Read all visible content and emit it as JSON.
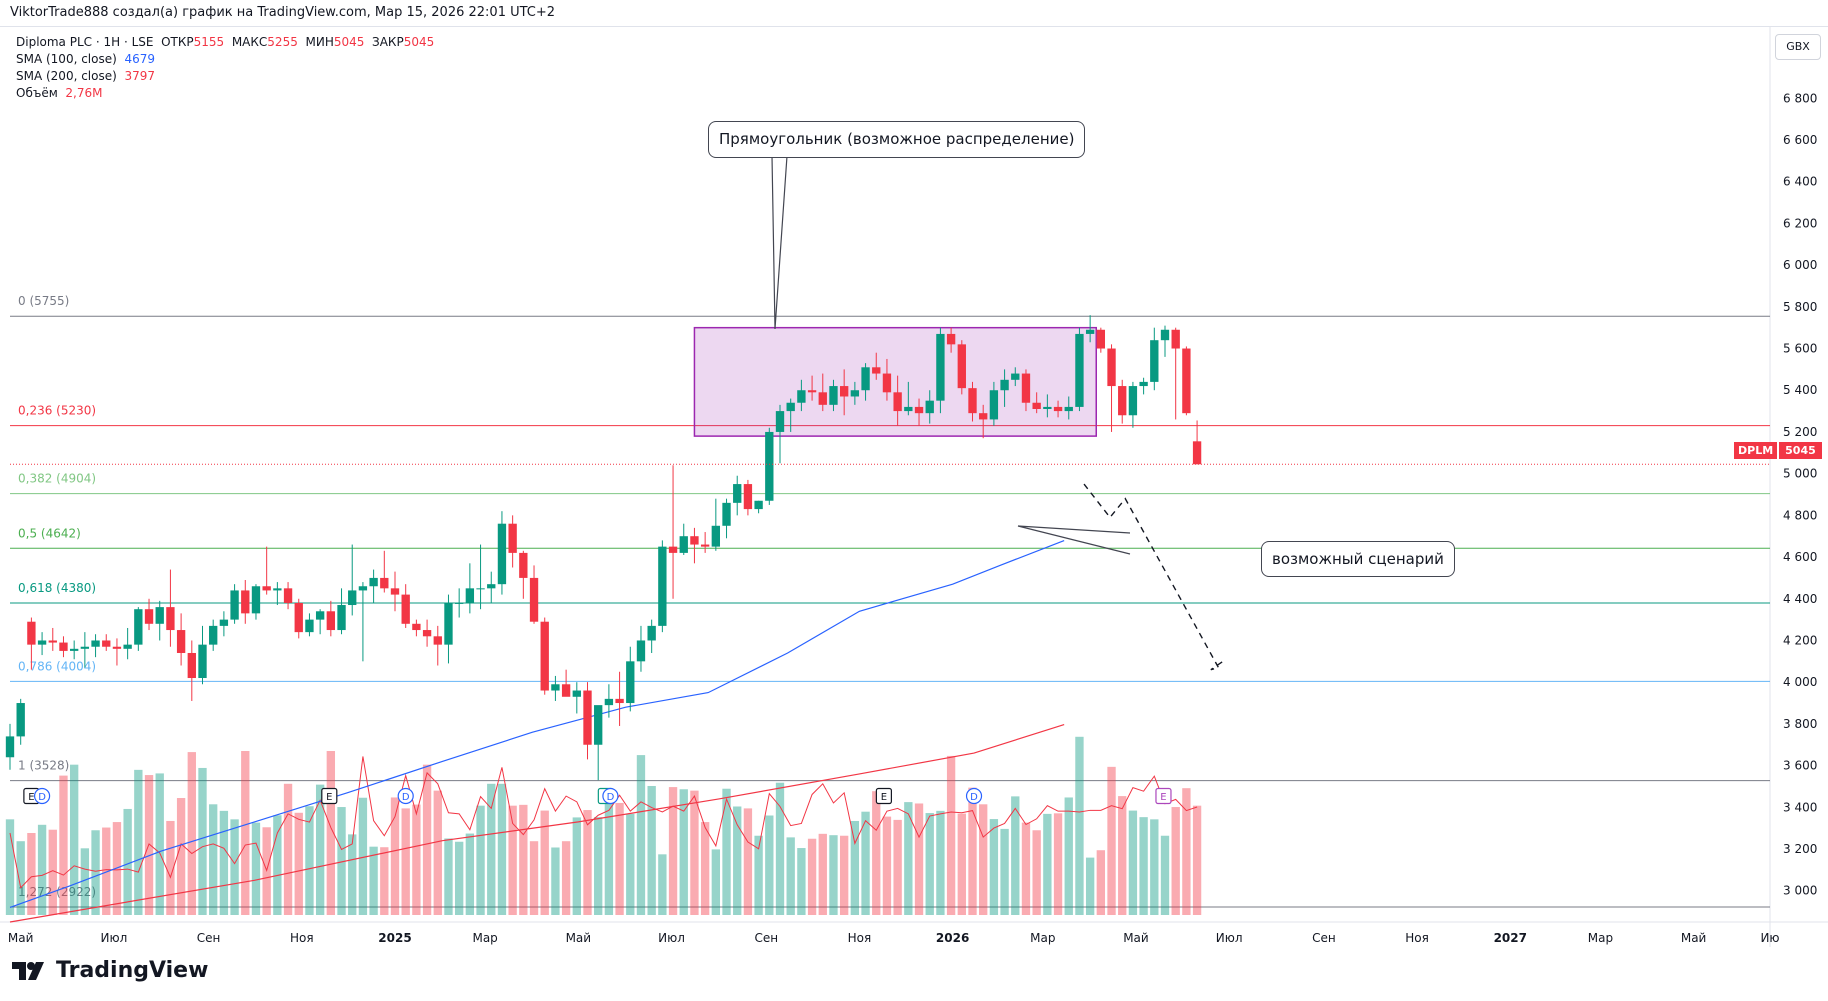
{
  "header": {
    "attribution": "ViktorTrade888 создал(а) график на TradingView.com, Мар 15, 2026 22:01 UTC+2"
  },
  "legend": {
    "symbol_line": "Diploma PLC · 1Н · LSE",
    "open_label": "ОТКР",
    "open_value": "5155",
    "high_label": "МАКС",
    "high_value": "5255",
    "low_label": "МИН",
    "low_value": "5045",
    "close_label": "ЗАКР",
    "close_value": "5045",
    "sma100_label": "SMA (100, close)",
    "sma100_value": "4679",
    "sma200_label": "SMA (200, close)",
    "sma200_value": "3797",
    "volume_label": "Объём",
    "volume_value": "2,76M"
  },
  "currency_button": "GBX",
  "price_tag": {
    "symbol": "DPLM",
    "value": "5045"
  },
  "annotations": {
    "rectangle_callout": "Прямоугольник (возможное распределение)",
    "scenario_callout": "возможный сценарий"
  },
  "fib_levels": [
    {
      "label": "0 (5755)",
      "price": 5755,
      "color": "#787b86"
    },
    {
      "label": "0,236 (5230)",
      "price": 5230,
      "color": "#f23645"
    },
    {
      "label": "0,382 (4904)",
      "price": 4904,
      "color": "#81c784"
    },
    {
      "label": "0,5 (4642)",
      "price": 4642,
      "color": "#4caf50"
    },
    {
      "label": "0,618 (4380)",
      "price": 4380,
      "color": "#089981"
    },
    {
      "label": "0,786 (4004)",
      "price": 4004,
      "color": "#64b5f6"
    },
    {
      "label": "1 (3528)",
      "price": 3528,
      "color": "#787b86"
    },
    {
      "label": "1,272 (2922)",
      "price": 2922,
      "color": "#787b86"
    }
  ],
  "event_markers": [
    {
      "text": "E",
      "date": "2024-05-08",
      "color": "#131722"
    },
    {
      "text": "D",
      "date": "2024-05-15",
      "color": "#2962ff"
    },
    {
      "text": "E",
      "date": "2024-11-19",
      "color": "#131722"
    },
    {
      "text": "D",
      "date": "2025-01-08",
      "color": "#2962ff"
    },
    {
      "text": "E",
      "date": "2025-05-19",
      "color": "#089981"
    },
    {
      "text": "D",
      "date": "2025-05-22",
      "color": "#2962ff"
    },
    {
      "text": "E",
      "date": "2025-11-17",
      "color": "#131722"
    },
    {
      "text": "D",
      "date": "2026-01-15",
      "color": "#2962ff"
    },
    {
      "text": "E",
      "date": "2026-05-19",
      "color": "#ab47bc"
    }
  ],
  "brand": {
    "name": "TradingView"
  },
  "chart_data": {
    "type": "candlestick",
    "symbol": "DPLM",
    "currency": "GBX",
    "ylim": [
      2850,
      6950
    ],
    "y_ticks": [
      3000,
      3200,
      3400,
      3600,
      3800,
      4000,
      4200,
      4400,
      4600,
      4800,
      5000,
      5200,
      5400,
      5600,
      5800,
      6000,
      6200,
      6400,
      6600,
      6800
    ],
    "x_range": [
      "2024-04-24",
      "2027-06-20"
    ],
    "x_ticks": [
      {
        "label": "Май",
        "date": "2024-05-01",
        "bold": false
      },
      {
        "label": "Июл",
        "date": "2024-07-01",
        "bold": false
      },
      {
        "label": "Сен",
        "date": "2024-09-01",
        "bold": false
      },
      {
        "label": "Ноя",
        "date": "2024-11-01",
        "bold": false
      },
      {
        "label": "2025",
        "date": "2025-01-01",
        "bold": true
      },
      {
        "label": "Мар",
        "date": "2025-03-01",
        "bold": false
      },
      {
        "label": "Май",
        "date": "2025-05-01",
        "bold": false
      },
      {
        "label": "Июл",
        "date": "2025-07-01",
        "bold": false
      },
      {
        "label": "Сен",
        "date": "2025-09-01",
        "bold": false
      },
      {
        "label": "Ноя",
        "date": "2025-11-01",
        "bold": false
      },
      {
        "label": "2026",
        "date": "2026-01-01",
        "bold": true
      },
      {
        "label": "Мар",
        "date": "2026-03-01",
        "bold": false
      },
      {
        "label": "Май",
        "date": "2026-05-01",
        "bold": false
      },
      {
        "label": "Июл",
        "date": "2026-07-01",
        "bold": false
      },
      {
        "label": "Сен",
        "date": "2026-09-01",
        "bold": false
      },
      {
        "label": "Ноя",
        "date": "2026-11-01",
        "bold": false
      },
      {
        "label": "2027",
        "date": "2027-01-01",
        "bold": true
      },
      {
        "label": "Мар",
        "date": "2027-03-01",
        "bold": false
      },
      {
        "label": "Май",
        "date": "2027-05-01",
        "bold": false
      },
      {
        "label": "Ию",
        "date": "2027-06-20",
        "bold": false
      }
    ],
    "candle_start_date": "2024-04-24",
    "candle_interval_days": 7,
    "candles": [
      [
        3640,
        3800,
        3580,
        3740
      ],
      [
        3740,
        3920,
        3700,
        3900
      ],
      [
        4290,
        4310,
        4060,
        4180
      ],
      [
        4180,
        4240,
        4130,
        4200
      ],
      [
        4200,
        4260,
        4150,
        4190
      ],
      [
        4190,
        4220,
        4120,
        4150
      ],
      [
        4150,
        4200,
        4110,
        4160
      ],
      [
        4160,
        4240,
        4070,
        4170
      ],
      [
        4170,
        4230,
        4120,
        4200
      ],
      [
        4200,
        4230,
        4150,
        4170
      ],
      [
        4170,
        4210,
        4080,
        4160
      ],
      [
        4160,
        4260,
        4110,
        4180
      ],
      [
        4180,
        4360,
        4150,
        4350
      ],
      [
        4350,
        4400,
        4250,
        4280
      ],
      [
        4280,
        4390,
        4200,
        4360
      ],
      [
        4360,
        4540,
        4170,
        4250
      ],
      [
        4250,
        4330,
        4080,
        4140
      ],
      [
        4140,
        4200,
        3910,
        4020
      ],
      [
        4020,
        4270,
        3990,
        4180
      ],
      [
        4180,
        4300,
        4150,
        4270
      ],
      [
        4270,
        4340,
        4220,
        4300
      ],
      [
        4300,
        4470,
        4280,
        4440
      ],
      [
        4440,
        4490,
        4280,
        4330
      ],
      [
        4330,
        4470,
        4300,
        4460
      ],
      [
        4460,
        4650,
        4420,
        4440
      ],
      [
        4440,
        4480,
        4370,
        4450
      ],
      [
        4450,
        4480,
        4350,
        4380
      ],
      [
        4380,
        4400,
        4210,
        4240
      ],
      [
        4240,
        4330,
        4220,
        4300
      ],
      [
        4300,
        4350,
        4230,
        4340
      ],
      [
        4340,
        4390,
        4220,
        4250
      ],
      [
        4250,
        4450,
        4230,
        4370
      ],
      [
        4370,
        4660,
        4320,
        4440
      ],
      [
        4440,
        4480,
        4100,
        4460
      ],
      [
        4460,
        4540,
        4380,
        4500
      ],
      [
        4500,
        4630,
        4430,
        4450
      ],
      [
        4450,
        4530,
        4340,
        4420
      ],
      [
        4420,
        4470,
        4260,
        4280
      ],
      [
        4280,
        4300,
        4220,
        4250
      ],
      [
        4250,
        4300,
        4170,
        4220
      ],
      [
        4220,
        4270,
        4080,
        4180
      ],
      [
        4180,
        4420,
        4090,
        4380
      ],
      [
        4380,
        4450,
        4310,
        4380
      ],
      [
        4380,
        4570,
        4330,
        4450
      ],
      [
        4450,
        4660,
        4350,
        4450
      ],
      [
        4450,
        4530,
        4380,
        4470
      ],
      [
        4470,
        4820,
        4420,
        4760
      ],
      [
        4760,
        4800,
        4550,
        4620
      ],
      [
        4620,
        4630,
        4400,
        4500
      ],
      [
        4500,
        4560,
        4280,
        4290
      ],
      [
        4290,
        4310,
        3940,
        3960
      ],
      [
        3960,
        4030,
        3910,
        3990
      ],
      [
        3990,
        4060,
        3940,
        3930
      ],
      [
        3930,
        4000,
        3850,
        3960
      ],
      [
        3960,
        4000,
        3630,
        3700
      ],
      [
        3700,
        3860,
        3530,
        3890
      ],
      [
        3890,
        3990,
        3830,
        3920
      ],
      [
        3920,
        4050,
        3790,
        3900
      ],
      [
        3900,
        4170,
        3860,
        4100
      ],
      [
        4100,
        4270,
        4050,
        4200
      ],
      [
        4200,
        4300,
        4140,
        4270
      ],
      [
        4270,
        4680,
        4240,
        4650
      ],
      [
        4650,
        5040,
        4400,
        4620
      ],
      [
        4620,
        4760,
        4610,
        4700
      ],
      [
        4700,
        4740,
        4570,
        4660
      ],
      [
        4660,
        4720,
        4620,
        4650
      ],
      [
        4650,
        4880,
        4630,
        4750
      ],
      [
        4750,
        4880,
        4690,
        4860
      ],
      [
        4860,
        4990,
        4800,
        4950
      ],
      [
        4950,
        4970,
        4800,
        4830
      ],
      [
        4830,
        4870,
        4810,
        4870
      ],
      [
        4870,
        5220,
        4850,
        5200
      ],
      [
        5200,
        5330,
        5050,
        5300
      ],
      [
        5300,
        5360,
        5200,
        5340
      ],
      [
        5340,
        5450,
        5300,
        5400
      ],
      [
        5400,
        5470,
        5350,
        5390
      ],
      [
        5390,
        5480,
        5300,
        5330
      ],
      [
        5330,
        5450,
        5300,
        5420
      ],
      [
        5420,
        5500,
        5280,
        5370
      ],
      [
        5370,
        5440,
        5330,
        5400
      ],
      [
        5400,
        5530,
        5350,
        5510
      ],
      [
        5510,
        5580,
        5450,
        5480
      ],
      [
        5480,
        5550,
        5350,
        5390
      ],
      [
        5390,
        5470,
        5230,
        5300
      ],
      [
        5300,
        5440,
        5280,
        5320
      ],
      [
        5320,
        5360,
        5230,
        5290
      ],
      [
        5290,
        5400,
        5240,
        5350
      ],
      [
        5350,
        5700,
        5290,
        5670
      ],
      [
        5670,
        5700,
        5580,
        5620
      ],
      [
        5620,
        5640,
        5380,
        5410
      ],
      [
        5410,
        5440,
        5250,
        5290
      ],
      [
        5290,
        5330,
        5170,
        5260
      ],
      [
        5260,
        5440,
        5230,
        5400
      ],
      [
        5400,
        5500,
        5320,
        5450
      ],
      [
        5450,
        5510,
        5420,
        5480
      ],
      [
        5480,
        5500,
        5300,
        5340
      ],
      [
        5340,
        5390,
        5290,
        5310
      ],
      [
        5310,
        5380,
        5270,
        5320
      ],
      [
        5320,
        5350,
        5270,
        5300
      ],
      [
        5300,
        5370,
        5260,
        5320
      ],
      [
        5320,
        5700,
        5300,
        5670
      ],
      [
        5670,
        5760,
        5630,
        5690
      ],
      [
        5690,
        5700,
        5580,
        5600
      ],
      [
        5600,
        5620,
        5200,
        5420
      ],
      [
        5420,
        5450,
        5240,
        5280
      ],
      [
        5280,
        5440,
        5220,
        5420
      ],
      [
        5420,
        5460,
        5380,
        5440
      ],
      [
        5440,
        5700,
        5400,
        5640
      ],
      [
        5640,
        5710,
        5560,
        5690
      ],
      [
        5690,
        5700,
        5260,
        5600
      ],
      [
        5600,
        5610,
        5280,
        5290
      ],
      [
        5155,
        5255,
        5045,
        5045
      ]
    ],
    "volume": [
      [
        3500,
        3000
      ],
      [
        2700,
        1000
      ],
      [
        3000,
        1400
      ],
      [
        3300,
        1450
      ],
      [
        3120,
        1620
      ],
      [
        5100,
        1460
      ],
      [
        5500,
        1800
      ],
      [
        2440,
        1680
      ],
      [
        3100,
        1600
      ],
      [
        3200,
        1660
      ],
      [
        3400,
        1650
      ],
      [
        3880,
        1680
      ],
      [
        5310,
        1570
      ],
      [
        5120,
        2600
      ],
      [
        5180,
        2270
      ],
      [
        3440,
        1380
      ],
      [
        4280,
        2600
      ],
      [
        5960,
        2250
      ],
      [
        5380,
        2500
      ],
      [
        4050,
        2600
      ],
      [
        3810,
        2440
      ],
      [
        3500,
        1880
      ],
      [
        6000,
        2560
      ],
      [
        3380,
        2630
      ],
      [
        3210,
        1630
      ],
      [
        3650,
        3000
      ],
      [
        4800,
        3700
      ],
      [
        3740,
        3500
      ],
      [
        3980,
        3400
      ],
      [
        4770,
        4200
      ],
      [
        6000,
        3200
      ],
      [
        3950,
        2400
      ],
      [
        2950,
        2600
      ],
      [
        4290,
        5800
      ],
      [
        2500,
        3450
      ],
      [
        2480,
        2900
      ],
      [
        4300,
        3600
      ],
      [
        3900,
        5100
      ],
      [
        4040,
        3700
      ],
      [
        5500,
        5200
      ],
      [
        4550,
        4800
      ],
      [
        2800,
        3740
      ],
      [
        2680,
        3700
      ],
      [
        2980,
        3120
      ],
      [
        4000,
        4330
      ],
      [
        4800,
        3900
      ],
      [
        4800,
        5400
      ],
      [
        4000,
        3350
      ],
      [
        4030,
        2940
      ],
      [
        2700,
        3480
      ],
      [
        3820,
        4620
      ],
      [
        2470,
        3800
      ],
      [
        2700,
        4350
      ],
      [
        3570,
        4140
      ],
      [
        3840,
        3300
      ],
      [
        3580,
        3650
      ],
      [
        4180,
        3830
      ],
      [
        4100,
        4380
      ],
      [
        3700,
        3800
      ],
      [
        5850,
        4140
      ],
      [
        4720,
        3930
      ],
      [
        2220,
        3770
      ],
      [
        4680,
        3980
      ],
      [
        4600,
        3800
      ],
      [
        4550,
        4350
      ],
      [
        3400,
        3200
      ],
      [
        2400,
        2530
      ],
      [
        4620,
        4240
      ],
      [
        3970,
        3300
      ],
      [
        3900,
        2670
      ],
      [
        2900,
        2420
      ],
      [
        3640,
        4440
      ],
      [
        4840,
        3970
      ],
      [
        2840,
        3270
      ],
      [
        2450,
        3350
      ],
      [
        2790,
        4410
      ],
      [
        2970,
        4800
      ],
      [
        2920,
        4100
      ],
      [
        2900,
        4470
      ],
      [
        3440,
        2620
      ],
      [
        3780,
        3450
      ],
      [
        4530,
        3100
      ],
      [
        3600,
        3800
      ],
      [
        3480,
        3900
      ],
      [
        4130,
        3700
      ],
      [
        4080,
        2850
      ],
      [
        3730,
        3620
      ],
      [
        3810,
        3700
      ],
      [
        5820,
        3770
      ],
      [
        3710,
        3740
      ],
      [
        4660,
        3820
      ],
      [
        4050,
        2850
      ],
      [
        3510,
        3180
      ],
      [
        3150,
        3350
      ],
      [
        4340,
        3900
      ],
      [
        3380,
        3310
      ],
      [
        3100,
        3520
      ],
      [
        3700,
        4000
      ],
      [
        3720,
        3800
      ],
      [
        4300,
        3800
      ],
      [
        6520,
        3770
      ],
      [
        2100,
        3830
      ],
      [
        2370,
        3830
      ],
      [
        5420,
        4000
      ],
      [
        4350,
        3890
      ],
      [
        3820,
        4660
      ],
      [
        3580,
        4530
      ],
      [
        3500,
        5080
      ],
      [
        2900,
        4070
      ],
      [
        3950,
        4230
      ],
      [
        4640,
        3820
      ],
      [
        4000,
        3950
      ]
    ],
    "volume_ymax": 12000,
    "sma100": [
      [
        "2024-04-24",
        2920
      ],
      [
        "2024-06-01",
        3020
      ],
      [
        "2024-08-01",
        3190
      ],
      [
        "2024-10-01",
        3330
      ],
      [
        "2024-12-01",
        3470
      ],
      [
        "2025-02-01",
        3620
      ],
      [
        "2025-04-01",
        3760
      ],
      [
        "2025-06-01",
        3880
      ],
      [
        "2025-07-25",
        3950
      ],
      [
        "2025-09-15",
        4140
      ],
      [
        "2025-11-01",
        4340
      ],
      [
        "2026-01-01",
        4470
      ],
      [
        "2026-02-01",
        4560
      ],
      [
        "2026-03-15",
        4679
      ]
    ],
    "sma200": [
      [
        "2024-04-24",
        2850
      ],
      [
        "2024-10-01",
        3050
      ],
      [
        "2025-02-01",
        3240
      ],
      [
        "2025-05-01",
        3330
      ],
      [
        "2025-08-01",
        3440
      ],
      [
        "2025-11-01",
        3560
      ],
      [
        "2026-01-15",
        3660
      ],
      [
        "2026-03-15",
        3797
      ]
    ],
    "rectangle": {
      "date_from": "2025-07-16",
      "date_to": "2026-04-05",
      "price_from": 5180,
      "price_to": 5700
    },
    "scenario_path": [
      [
        "2026-03-28",
        4950
      ],
      [
        "2026-04-14",
        4790
      ],
      [
        "2026-04-24",
        4880
      ],
      [
        "2026-06-24",
        4070
      ],
      [
        "2026-06-19",
        4060
      ],
      [
        "2026-06-29",
        4110
      ]
    ]
  }
}
